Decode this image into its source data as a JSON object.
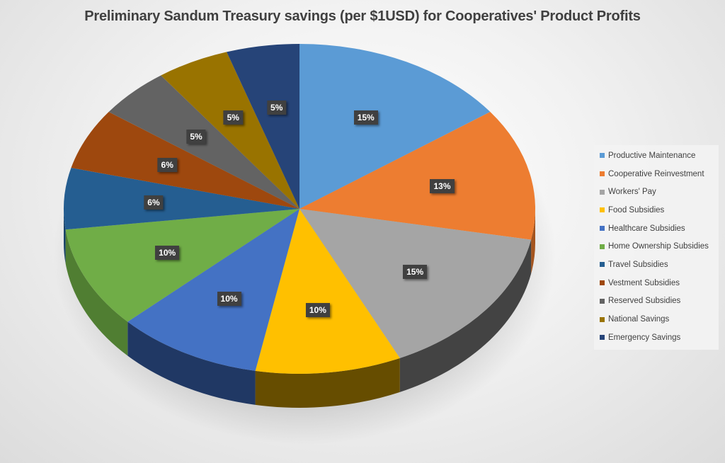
{
  "chart_data": {
    "type": "pie",
    "title": "Preliminary Sandum Treasury savings (per $1USD) for Cooperatives' Product Profits",
    "categories": [
      "Productive Maintenance",
      "Cooperative Reinvestment",
      "Workers' Pay",
      "Food Subsidies",
      "Healthcare Subsidies",
      "Home Ownership Subsidies",
      "Travel Subsidies",
      "Vestment Subsidies",
      "Reserved Subsidies",
      "National Savings",
      "Emergency Savings"
    ],
    "values": [
      15,
      13,
      15,
      10,
      10,
      10,
      6,
      6,
      5,
      5,
      5
    ],
    "labels": [
      "15%",
      "13%",
      "15%",
      "10%",
      "10%",
      "10%",
      "6%",
      "6%",
      "5%",
      "5%",
      "5%"
    ],
    "colors": [
      "#5B9BD5",
      "#ED7D31",
      "#A5A5A5",
      "#FFC000",
      "#4472C4",
      "#70AD47",
      "#255E91",
      "#9E480E",
      "#636363",
      "#997300",
      "#264478"
    ],
    "side_colors": [
      "#3A6E9E",
      "#A4541E",
      "#434343",
      "#664D00",
      "#203864",
      "#507E32",
      "#1A4468",
      "#6E320A",
      "#454545",
      "#6B5000",
      "#1A2F54"
    ],
    "data_labels": "percentage",
    "legend_position": "right",
    "style": "3d-pie",
    "start_angle": 0,
    "direction": "clockwise"
  },
  "legend": {
    "items": [
      {
        "label": "Productive Maintenance",
        "color": "#5B9BD5"
      },
      {
        "label": "Cooperative Reinvestment",
        "color": "#ED7D31"
      },
      {
        "label": "Workers' Pay",
        "color": "#A5A5A5"
      },
      {
        "label": "Food Subsidies",
        "color": "#FFC000"
      },
      {
        "label": "Healthcare Subsidies",
        "color": "#4472C4"
      },
      {
        "label": "Home Ownership Subsidies",
        "color": "#70AD47"
      },
      {
        "label": "Travel Subsidies",
        "color": "#255E91"
      },
      {
        "label": "Vestment Subsidies",
        "color": "#9E480E"
      },
      {
        "label": "Reserved Subsidies",
        "color": "#636363"
      },
      {
        "label": "National Savings",
        "color": "#997300"
      },
      {
        "label": "Emergency Savings",
        "color": "#264478"
      }
    ]
  }
}
